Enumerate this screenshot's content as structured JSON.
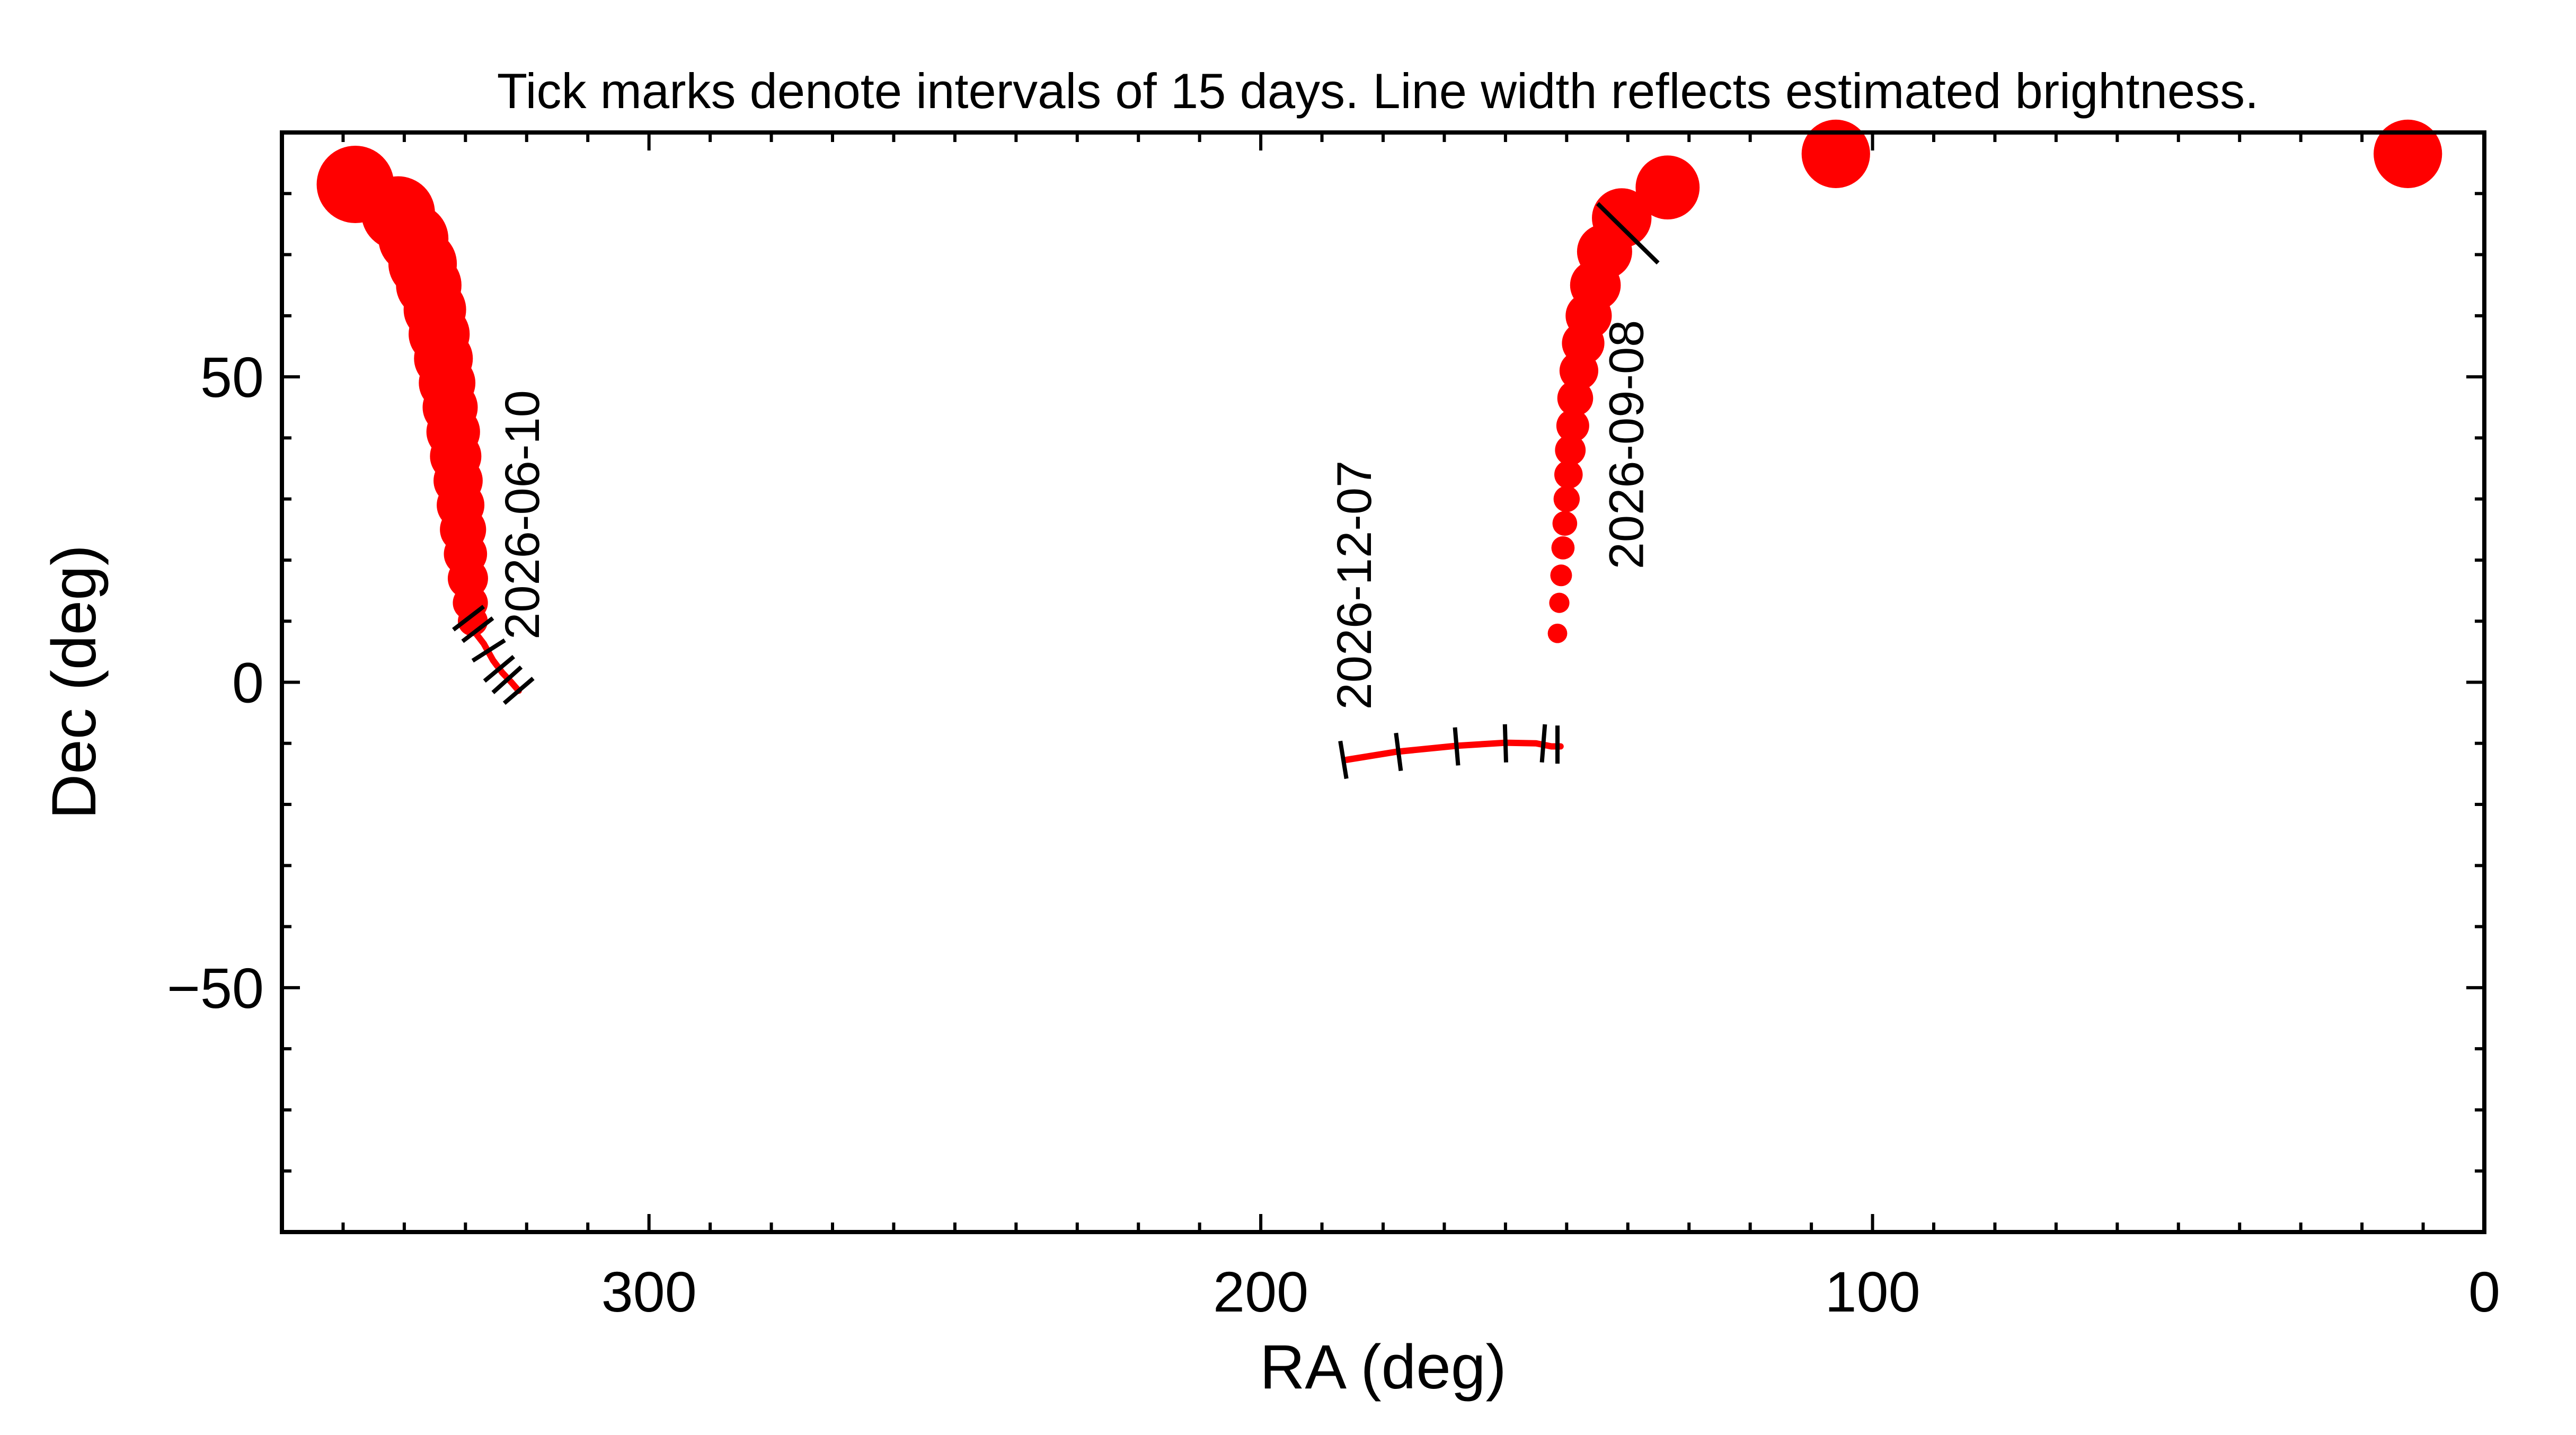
{
  "chart_data": {
    "type": "line",
    "title": "Tick marks denote intervals of 15 days.  Line width reflects estimated brightness.",
    "xlabel": "RA (deg)",
    "ylabel": "Dec (deg)",
    "xlim": [
      360,
      0
    ],
    "ylim": [
      -90,
      90
    ],
    "x_ticks": [
      300,
      200,
      100,
      0
    ],
    "y_ticks": [
      50,
      0,
      -50
    ],
    "x_tick_labels": [
      "300",
      "200",
      "100",
      "0"
    ],
    "y_tick_labels": [
      "50",
      "0",
      "−50"
    ],
    "grid": false,
    "colors": {
      "track": "#ff0000",
      "ticks": "#000000",
      "axes": "#000000"
    },
    "segments": [
      {
        "thin_path": [
          [
            328.3,
            8.0
          ],
          [
            327.0,
            6.3
          ],
          [
            325.5,
            3.6
          ],
          [
            324.0,
            1.6
          ],
          [
            322.5,
            0.0
          ],
          [
            321.3,
            -1.4
          ]
        ],
        "dots": [
          [
            348.0,
            81.5,
            0.9
          ],
          [
            341.0,
            76.8,
            0.85
          ],
          [
            338.5,
            72.6,
            0.8
          ],
          [
            337.0,
            68.5,
            0.78
          ],
          [
            336.0,
            65.0,
            0.74
          ],
          [
            335.0,
            61.0,
            0.7
          ],
          [
            334.3,
            57.0,
            0.68
          ],
          [
            333.6,
            53.0,
            0.65
          ],
          [
            333.0,
            49.0,
            0.62
          ],
          [
            332.5,
            45.0,
            0.6
          ],
          [
            332.0,
            41.0,
            0.58
          ],
          [
            331.6,
            37.0,
            0.55
          ],
          [
            331.2,
            33.0,
            0.52
          ],
          [
            330.8,
            29.0,
            0.5
          ],
          [
            330.4,
            25.0,
            0.48
          ],
          [
            330.0,
            21.0,
            0.44
          ],
          [
            329.6,
            17.0,
            0.4
          ],
          [
            329.2,
            13.0,
            0.33
          ],
          [
            328.8,
            10.0,
            0.26
          ]
        ],
        "tick_marks": [
          [
            329.5,
            10.5
          ],
          [
            328.0,
            8.6
          ],
          [
            326.2,
            5.2
          ],
          [
            324.5,
            2.2
          ],
          [
            323.2,
            0.4
          ],
          [
            321.3,
            -1.4
          ]
        ],
        "date_label": "2026-06-10",
        "date_label_anchor": [
          318.0,
          7.0
        ]
      },
      {
        "thin_path": [
          [
            186.0,
            -12.7
          ],
          [
            178.0,
            -11.4
          ],
          [
            168.0,
            -10.4
          ],
          [
            160.0,
            -9.9
          ],
          [
            155.0,
            -10.0
          ],
          [
            152.5,
            -10.5
          ],
          [
            151.0,
            -10.5
          ]
        ],
        "dots": [
          [
            151.5,
            8.0,
            0.12
          ],
          [
            151.2,
            13.0,
            0.13
          ],
          [
            150.9,
            17.5,
            0.15
          ],
          [
            150.6,
            22.0,
            0.17
          ],
          [
            150.3,
            26.0,
            0.19
          ],
          [
            150.0,
            30.0,
            0.21
          ],
          [
            149.7,
            34.0,
            0.24
          ],
          [
            149.4,
            38.0,
            0.27
          ],
          [
            149.0,
            42.0,
            0.3
          ],
          [
            148.6,
            46.5,
            0.34
          ],
          [
            148.0,
            51.0,
            0.38
          ],
          [
            147.3,
            55.5,
            0.43
          ],
          [
            146.4,
            60.0,
            0.48
          ],
          [
            145.3,
            65.0,
            0.54
          ],
          [
            143.8,
            70.5,
            0.6
          ],
          [
            141.0,
            76.0,
            0.66
          ],
          [
            133.5,
            81.0,
            0.72
          ],
          [
            106.0,
            86.5,
            0.78
          ],
          [
            12.5,
            86.5,
            0.78
          ]
        ],
        "tick_marks": [
          [
            186.5,
            -12.7
          ],
          [
            177.5,
            -11.4
          ],
          [
            168.0,
            -10.5
          ],
          [
            160.0,
            -10.0
          ],
          [
            153.8,
            -10.0
          ],
          [
            151.5,
            -10.2
          ]
        ],
        "big_tick": [
          140.0,
          73.5
        ],
        "date_labels": [
          {
            "text": "2026-12-07",
            "anchor": [
              182.0,
              -4.5
            ]
          },
          {
            "text": "2026-09-08",
            "anchor": [
              137.5,
              18.5
            ]
          }
        ]
      }
    ]
  }
}
